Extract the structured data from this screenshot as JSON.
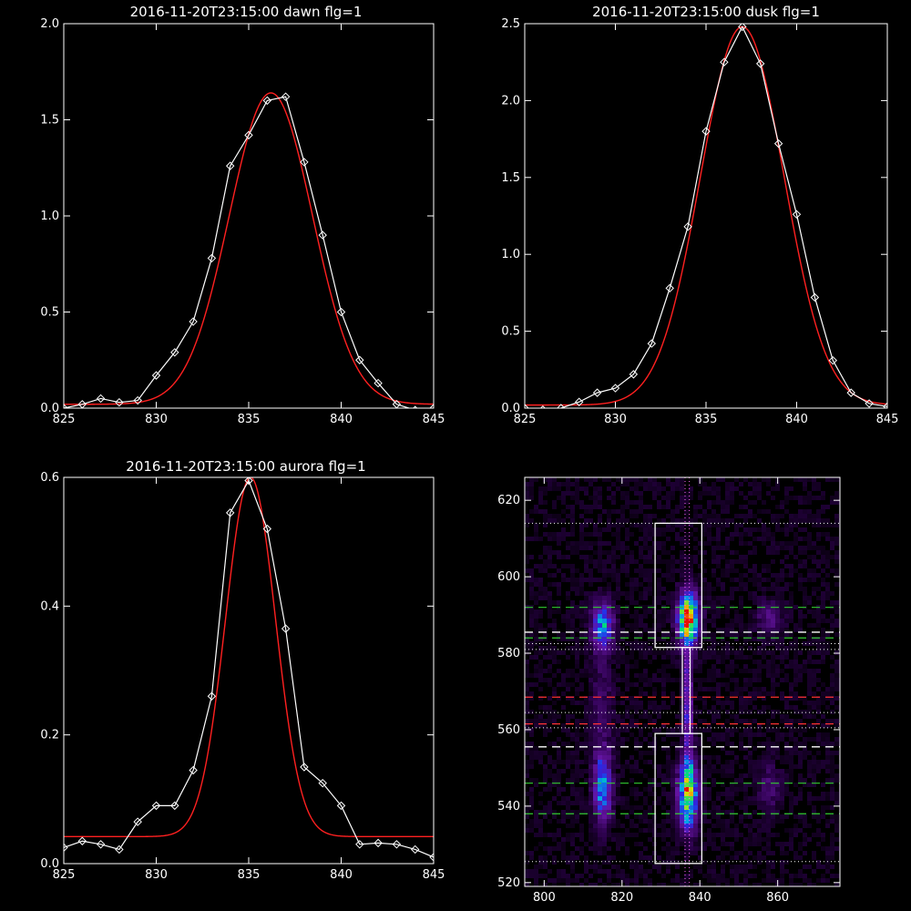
{
  "colors": {
    "background": "#000000",
    "data_line": "#ffffff",
    "fit_line": "#ff2020",
    "green_dash": "#33cc33",
    "red_dash": "#ff3333",
    "magenta_dot": "#ff66ff"
  },
  "chart_data": [
    {
      "type": "line",
      "title": "2016-11-20T23:15:00 dawn flg=1",
      "xlim": [
        825,
        845
      ],
      "ylim": [
        0,
        2.0
      ],
      "xticks": [
        "825",
        "830",
        "835",
        "840",
        "845"
      ],
      "yticks": [
        "0.0",
        "0.5",
        "1.0",
        "1.5",
        "2.0"
      ],
      "series": [
        {
          "marker": "diamond",
          "x": [
            825,
            826,
            827,
            828,
            829,
            830,
            831,
            832,
            833,
            834,
            835,
            836,
            837,
            838,
            839,
            840,
            841,
            842,
            843,
            844,
            845
          ],
          "y": [
            0.0,
            0.02,
            0.05,
            0.03,
            0.04,
            0.17,
            0.29,
            0.45,
            0.78,
            1.26,
            1.42,
            1.6,
            1.62,
            1.28,
            0.9,
            0.5,
            0.25,
            0.13,
            0.02,
            -0.01,
            0.0
          ]
        },
        {
          "marker": "none",
          "fit": {
            "center": 836.2,
            "amplitude": 1.62,
            "sigma": 2.25,
            "offset": 0.02
          }
        }
      ]
    },
    {
      "type": "line",
      "title": "2016-11-20T23:15:00 dusk flg=1",
      "xlim": [
        825,
        845
      ],
      "ylim": [
        0,
        2.5
      ],
      "xticks": [
        "825",
        "830",
        "835",
        "840",
        "845"
      ],
      "yticks": [
        "0.0",
        "0.5",
        "1.0",
        "1.5",
        "2.0",
        "2.5"
      ],
      "series": [
        {
          "marker": "diamond",
          "x": [
            825,
            826,
            827,
            828,
            829,
            830,
            831,
            832,
            833,
            834,
            835,
            836,
            837,
            838,
            839,
            840,
            841,
            842,
            843,
            844,
            845
          ],
          "y": [
            0.0,
            -0.01,
            0.0,
            0.04,
            0.1,
            0.13,
            0.22,
            0.42,
            0.78,
            1.18,
            1.8,
            2.25,
            2.48,
            2.24,
            1.72,
            1.26,
            0.72,
            0.31,
            0.1,
            0.03,
            0.01
          ]
        },
        {
          "marker": "none",
          "fit": {
            "center": 837.0,
            "amplitude": 2.46,
            "sigma": 2.3,
            "offset": 0.02
          }
        }
      ]
    },
    {
      "type": "line",
      "title": "2016-11-20T23:15:00 aurora flg=1",
      "xlim": [
        825,
        845
      ],
      "ylim": [
        0,
        0.6
      ],
      "xticks": [
        "825",
        "830",
        "835",
        "840",
        "845"
      ],
      "yticks": [
        "0.0",
        "0.2",
        "0.4",
        "0.6"
      ],
      "series": [
        {
          "marker": "diamond",
          "x": [
            825,
            826,
            827,
            828,
            829,
            830,
            831,
            832,
            833,
            834,
            835,
            836,
            837,
            838,
            839,
            840,
            841,
            842,
            843,
            844,
            845
          ],
          "y": [
            0.025,
            0.035,
            0.03,
            0.022,
            0.065,
            0.09,
            0.09,
            0.145,
            0.26,
            0.545,
            0.595,
            0.52,
            0.365,
            0.15,
            0.125,
            0.09,
            0.03,
            0.032,
            0.03,
            0.022,
            0.01
          ]
        },
        {
          "marker": "none",
          "fit": {
            "center": 835.1,
            "amplitude": 0.558,
            "sigma": 1.35,
            "offset": 0.042
          }
        }
      ]
    },
    {
      "type": "heatmap",
      "xlim": [
        795,
        876
      ],
      "ylim": [
        519,
        626
      ],
      "xticks": [
        "800",
        "820",
        "840",
        "860"
      ],
      "yticks": [
        "520",
        "540",
        "560",
        "580",
        "600",
        "620"
      ],
      "sources": [
        {
          "x": 837,
          "y": 589,
          "sx": 1.8,
          "sy": 4.5,
          "amp": 1.0
        },
        {
          "x": 837,
          "y": 543,
          "sx": 1.8,
          "sy": 6.0,
          "amp": 0.8
        },
        {
          "x": 815,
          "y": 587,
          "sx": 1.8,
          "sy": 4.0,
          "amp": 0.5
        },
        {
          "x": 815,
          "y": 545,
          "sx": 1.6,
          "sy": 6.0,
          "amp": 0.5
        },
        {
          "x": 858,
          "y": 589,
          "sx": 2.2,
          "sy": 3.0,
          "amp": 0.22
        },
        {
          "x": 858,
          "y": 545,
          "sx": 2.0,
          "sy": 4.5,
          "amp": 0.15
        },
        {
          "x": 837,
          "y": 566,
          "sx": 0.8,
          "sy": 12.0,
          "amp": 0.35
        },
        {
          "x": 815,
          "y": 566,
          "sx": 2.0,
          "sy": 14.0,
          "amp": 0.12
        }
      ],
      "boxes": [
        {
          "x0": 828.5,
          "x1": 840.5,
          "y0": 581.5,
          "y1": 614
        },
        {
          "x0": 828.5,
          "x1": 840.5,
          "y0": 525,
          "y1": 559
        }
      ],
      "bridge": {
        "x0": 835.5,
        "x1": 837.5,
        "y0": 559,
        "y1": 581.5
      },
      "green_dashed_y": [
        592,
        584,
        546,
        538
      ],
      "white_dashed_y": [
        585.5,
        555.5
      ],
      "red_dashed_y": [
        568.5,
        561.5
      ],
      "white_dotted_y": [
        614,
        582.5,
        581,
        564.5,
        560.5,
        525.5
      ],
      "magenta_dotted_x": [
        836.2,
        837.3
      ]
    }
  ]
}
